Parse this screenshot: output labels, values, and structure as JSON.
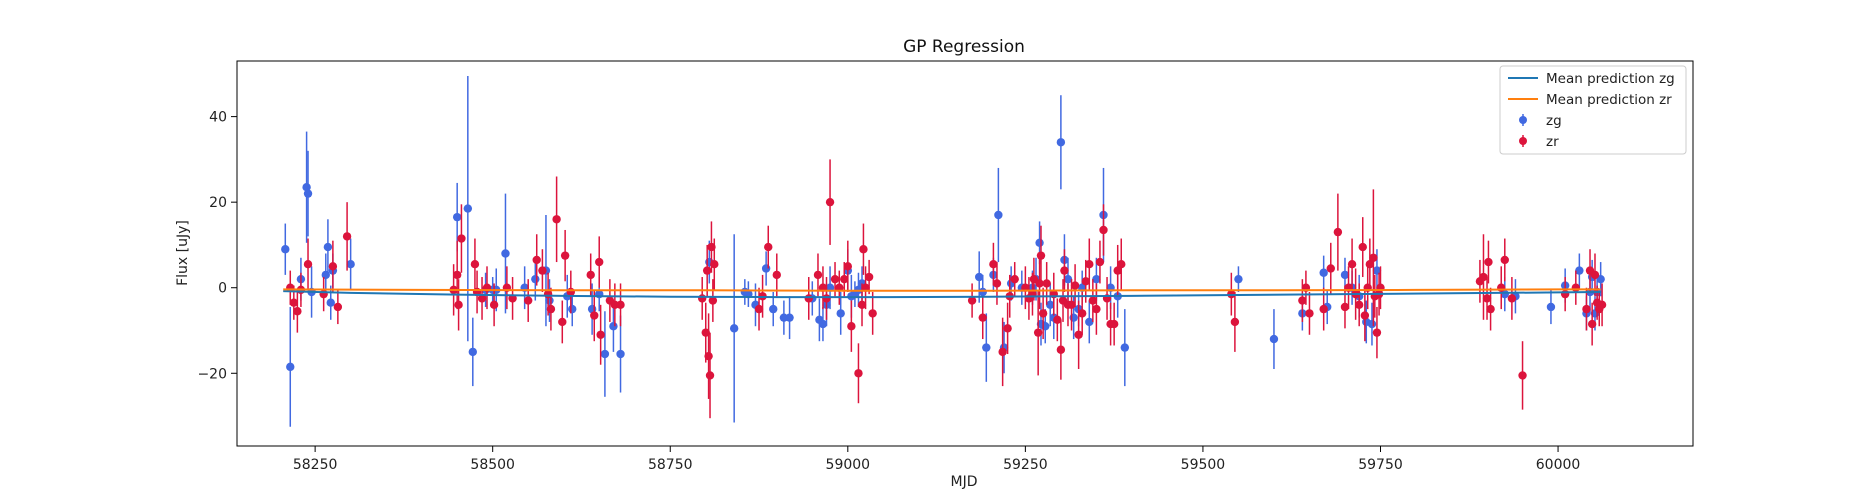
{
  "chart_data": {
    "type": "scatter",
    "title": "GP Regression",
    "xlabel": "MJD",
    "ylabel": "Flux [uJy]",
    "xlim": [
      58140,
      60190
    ],
    "ylim": [
      -37,
      53
    ],
    "xticks": [
      58250,
      58500,
      58750,
      59000,
      59250,
      59500,
      59750,
      60000
    ],
    "yticks": [
      -20,
      0,
      20,
      40
    ],
    "legend": {
      "placement": "top-right",
      "entries": [
        "Mean prediction zg",
        "Mean prediction zr",
        "zg",
        "zr"
      ]
    },
    "lines": [
      {
        "name": "Mean prediction zg",
        "color": "#1f77b4",
        "x": [
          58205,
          58300,
          58450,
          58600,
          58750,
          58900,
          59050,
          59200,
          59300,
          59400,
          59550,
          59700,
          59850,
          60000,
          60060
        ],
        "y": [
          -0.8,
          -1.2,
          -1.6,
          -1.9,
          -2.1,
          -2.2,
          -2.2,
          -2.1,
          -2.0,
          -1.9,
          -1.7,
          -1.5,
          -1.3,
          -1.1,
          -1.0
        ]
      },
      {
        "name": "Mean prediction zr",
        "color": "#ff7f0e",
        "x": [
          58205,
          58400,
          58600,
          58800,
          59000,
          59200,
          59400,
          59600,
          59800,
          60000,
          60060
        ],
        "y": [
          -0.4,
          -0.5,
          -0.6,
          -0.6,
          -0.7,
          -0.7,
          -0.6,
          -0.6,
          -0.5,
          -0.4,
          -0.4
        ]
      }
    ],
    "series": [
      {
        "name": "zg",
        "color": "#4169e1",
        "points": [
          [
            58208,
            9,
            6
          ],
          [
            58215,
            -18.5,
            14
          ],
          [
            58230,
            2,
            5
          ],
          [
            58238,
            23.5,
            13
          ],
          [
            58240,
            22,
            10
          ],
          [
            58245,
            -1,
            6
          ],
          [
            58265,
            3,
            5
          ],
          [
            58268,
            9.5,
            6.5
          ],
          [
            58272,
            -3.5,
            4
          ],
          [
            58275,
            4,
            4
          ],
          [
            58300,
            5.5,
            6
          ],
          [
            58450,
            16.5,
            8
          ],
          [
            58465,
            18.5,
            31
          ],
          [
            58472,
            -15,
            8
          ],
          [
            58490,
            -0.5,
            4
          ],
          [
            58500,
            -0.5,
            3
          ],
          [
            58505,
            -0.5,
            5
          ],
          [
            58518,
            8,
            14
          ],
          [
            58545,
            0,
            5
          ],
          [
            58560,
            2,
            5
          ],
          [
            58575,
            4,
            13
          ],
          [
            58580,
            -3,
            5
          ],
          [
            58605,
            -2,
            5
          ],
          [
            58612,
            -5,
            4
          ],
          [
            58640,
            -5,
            6
          ],
          [
            58650,
            -1.5,
            4
          ],
          [
            58658,
            -15.5,
            10
          ],
          [
            58670,
            -9,
            6
          ],
          [
            58680,
            -15.5,
            9
          ],
          [
            58805,
            6,
            5
          ],
          [
            58840,
            -9.5,
            22
          ],
          [
            58855,
            -1,
            3
          ],
          [
            58860,
            -1.5,
            3
          ],
          [
            58870,
            -4,
            5
          ],
          [
            58885,
            4.5,
            4
          ],
          [
            58895,
            -5,
            4
          ],
          [
            58910,
            -7,
            4
          ],
          [
            58918,
            -7,
            5
          ],
          [
            58950,
            -2.5,
            4
          ],
          [
            58960,
            -7.5,
            5
          ],
          [
            58965,
            -8.5,
            4
          ],
          [
            58970,
            -4,
            5
          ],
          [
            58975,
            0,
            5
          ],
          [
            58990,
            -6,
            5
          ],
          [
            59000,
            4,
            5
          ],
          [
            59005,
            -2,
            5
          ],
          [
            59010,
            -1.5,
            3
          ],
          [
            59015,
            -0.5,
            4
          ],
          [
            59020,
            1,
            4
          ],
          [
            59185,
            2.5,
            6
          ],
          [
            59190,
            -1,
            4
          ],
          [
            59195,
            -14,
            8
          ],
          [
            59205,
            3,
            4
          ],
          [
            59212,
            17,
            11
          ],
          [
            59220,
            -14,
            6
          ],
          [
            59230,
            1,
            4
          ],
          [
            59245,
            0,
            4
          ],
          [
            59260,
            0,
            4
          ],
          [
            59265,
            2,
            5
          ],
          [
            59270,
            10.5,
            5
          ],
          [
            59272,
            -8.5,
            5
          ],
          [
            59278,
            -9,
            4
          ],
          [
            59285,
            -4,
            5
          ],
          [
            59290,
            -7,
            5
          ],
          [
            59300,
            34,
            11
          ],
          [
            59305,
            6.5,
            6
          ],
          [
            59310,
            2,
            5
          ],
          [
            59318,
            -7,
            5
          ],
          [
            59325,
            -5,
            4
          ],
          [
            59330,
            0,
            4
          ],
          [
            59340,
            -8,
            5
          ],
          [
            59350,
            2,
            5
          ],
          [
            59360,
            17,
            11
          ],
          [
            59370,
            0,
            5
          ],
          [
            59380,
            -2,
            5
          ],
          [
            59390,
            -14,
            9
          ],
          [
            59550,
            2,
            3
          ],
          [
            59600,
            -12,
            7
          ],
          [
            59640,
            -6,
            4
          ],
          [
            59670,
            3.5,
            4
          ],
          [
            59675,
            -4.5,
            4
          ],
          [
            59700,
            3,
            4
          ],
          [
            59710,
            0,
            4
          ],
          [
            59720,
            -2,
            5
          ],
          [
            59730,
            -8,
            5
          ],
          [
            59738,
            -8.5,
            5
          ],
          [
            59745,
            4,
            5
          ],
          [
            59925,
            -1.5,
            4
          ],
          [
            59940,
            -2,
            4
          ],
          [
            59990,
            -4.5,
            4
          ],
          [
            60010,
            0.5,
            4
          ],
          [
            60030,
            4,
            4
          ],
          [
            60040,
            -6,
            4
          ],
          [
            60045,
            -1,
            5
          ],
          [
            60048,
            2.5,
            4
          ],
          [
            60052,
            -6,
            4
          ],
          [
            60055,
            -1,
            4
          ],
          [
            60060,
            2,
            4
          ]
        ]
      },
      {
        "name": "zr",
        "color": "#dc143c",
        "points": [
          [
            58215,
            0,
            4
          ],
          [
            58220,
            -3.5,
            4
          ],
          [
            58225,
            -5.5,
            5
          ],
          [
            58230,
            -0.5,
            4
          ],
          [
            58240,
            5.5,
            6
          ],
          [
            58262,
            -1.5,
            4
          ],
          [
            58275,
            5,
            6
          ],
          [
            58282,
            -4.5,
            4
          ],
          [
            58295,
            12,
            8
          ],
          [
            58445,
            -0.5,
            6
          ],
          [
            58450,
            3,
            8
          ],
          [
            58452,
            -4,
            6
          ],
          [
            58456,
            11.5,
            8
          ],
          [
            58475,
            5.5,
            6
          ],
          [
            58478,
            -1,
            5
          ],
          [
            58485,
            -2.5,
            5
          ],
          [
            58492,
            0,
            5
          ],
          [
            58502,
            -4,
            5
          ],
          [
            58520,
            0,
            5
          ],
          [
            58528,
            -2.5,
            5
          ],
          [
            58550,
            -3,
            5
          ],
          [
            58562,
            6.5,
            6
          ],
          [
            58570,
            4,
            5
          ],
          [
            58578,
            -1.5,
            5
          ],
          [
            58582,
            -5,
            5
          ],
          [
            58590,
            16,
            10
          ],
          [
            58598,
            -8,
            5
          ],
          [
            58602,
            7.5,
            6
          ],
          [
            58610,
            -1,
            5
          ],
          [
            58638,
            3,
            5
          ],
          [
            58643,
            -6.5,
            6
          ],
          [
            58650,
            6,
            6
          ],
          [
            58652,
            -11,
            7
          ],
          [
            58665,
            -3,
            5
          ],
          [
            58672,
            -4,
            5
          ],
          [
            58680,
            -4,
            5
          ],
          [
            58795,
            -2.5,
            5
          ],
          [
            58800,
            -10.5,
            7
          ],
          [
            58802,
            4,
            6
          ],
          [
            58804,
            -16,
            10
          ],
          [
            58806,
            -20.5,
            10
          ],
          [
            58808,
            9.5,
            6
          ],
          [
            58810,
            -3,
            5
          ],
          [
            58812,
            5.5,
            6
          ],
          [
            58875,
            -5,
            5
          ],
          [
            58880,
            -2,
            5
          ],
          [
            58888,
            9.5,
            5
          ],
          [
            58900,
            3,
            5
          ],
          [
            58945,
            -2.5,
            5
          ],
          [
            58958,
            3,
            5
          ],
          [
            58965,
            0,
            5
          ],
          [
            58970,
            -2.5,
            5
          ],
          [
            58975,
            20,
            10
          ],
          [
            58982,
            2,
            4
          ],
          [
            58988,
            0,
            4
          ],
          [
            58995,
            2,
            4
          ],
          [
            59000,
            5,
            6
          ],
          [
            59005,
            -9,
            6
          ],
          [
            59015,
            -20,
            7
          ],
          [
            59020,
            -4,
            5
          ],
          [
            59022,
            9,
            6
          ],
          [
            59025,
            0,
            5
          ],
          [
            59030,
            2.5,
            4
          ],
          [
            59035,
            -6,
            5
          ],
          [
            59175,
            -3,
            4
          ],
          [
            59190,
            -7,
            5
          ],
          [
            59205,
            5.5,
            5
          ],
          [
            59210,
            1,
            5
          ],
          [
            59218,
            -15,
            8
          ],
          [
            59225,
            -9.5,
            6
          ],
          [
            59228,
            -2,
            5
          ],
          [
            59235,
            2,
            4
          ],
          [
            59250,
            0,
            5
          ],
          [
            59255,
            -2.5,
            5
          ],
          [
            59260,
            -1.5,
            5
          ],
          [
            59262,
            2,
            5
          ],
          [
            59268,
            -10.5,
            10
          ],
          [
            59270,
            1,
            6
          ],
          [
            59272,
            7.5,
            7
          ],
          [
            59275,
            -6,
            6
          ],
          [
            59280,
            1,
            5
          ],
          [
            59290,
            -1.5,
            5
          ],
          [
            59295,
            -7.5,
            5
          ],
          [
            59300,
            -14.5,
            7
          ],
          [
            59303,
            -3,
            5
          ],
          [
            59305,
            4,
            5
          ],
          [
            59310,
            -4,
            5
          ],
          [
            59315,
            -4,
            6
          ],
          [
            59320,
            0.5,
            5
          ],
          [
            59325,
            -11,
            8
          ],
          [
            59330,
            -6,
            5
          ],
          [
            59335,
            1.5,
            5
          ],
          [
            59340,
            5.5,
            6
          ],
          [
            59345,
            -3,
            5
          ],
          [
            59350,
            -5,
            6
          ],
          [
            59355,
            6,
            5
          ],
          [
            59360,
            13.5,
            6
          ],
          [
            59365,
            -2.5,
            5
          ],
          [
            59370,
            -8.5,
            5
          ],
          [
            59375,
            -8.5,
            5
          ],
          [
            59380,
            4,
            6
          ],
          [
            59385,
            5.5,
            6
          ],
          [
            59540,
            -1.5,
            5
          ],
          [
            59545,
            -8,
            7
          ],
          [
            59640,
            -3,
            5
          ],
          [
            59645,
            0,
            4
          ],
          [
            59650,
            -6,
            5
          ],
          [
            59670,
            -5,
            5
          ],
          [
            59680,
            4.5,
            6
          ],
          [
            59690,
            13,
            9
          ],
          [
            59700,
            -4.5,
            5
          ],
          [
            59705,
            0,
            5
          ],
          [
            59710,
            5.5,
            6
          ],
          [
            59715,
            -1.5,
            6
          ],
          [
            59720,
            -4,
            5
          ],
          [
            59725,
            9.5,
            7
          ],
          [
            59728,
            -6.5,
            6
          ],
          [
            59732,
            0,
            5
          ],
          [
            59735,
            5.5,
            6
          ],
          [
            59740,
            7,
            16
          ],
          [
            59742,
            -2,
            5
          ],
          [
            59745,
            -10.5,
            6
          ],
          [
            59748,
            -1.5,
            5
          ],
          [
            59750,
            0,
            5
          ],
          [
            59890,
            1.5,
            5
          ],
          [
            59895,
            2.5,
            10
          ],
          [
            59900,
            -2.5,
            5
          ],
          [
            59902,
            6,
            5
          ],
          [
            59905,
            -5,
            5
          ],
          [
            59920,
            0,
            5
          ],
          [
            59925,
            6.5,
            5
          ],
          [
            59935,
            -2.5,
            5
          ],
          [
            59950,
            -20.5,
            8
          ],
          [
            60010,
            -1.5,
            4
          ],
          [
            60025,
            0,
            4
          ],
          [
            60040,
            -5,
            5
          ],
          [
            60045,
            4,
            5
          ],
          [
            60048,
            -8.5,
            5
          ],
          [
            60052,
            3,
            5
          ],
          [
            60055,
            -3.5,
            4
          ],
          [
            60058,
            -5,
            4
          ],
          [
            60062,
            -4,
            5
          ]
        ]
      }
    ]
  }
}
